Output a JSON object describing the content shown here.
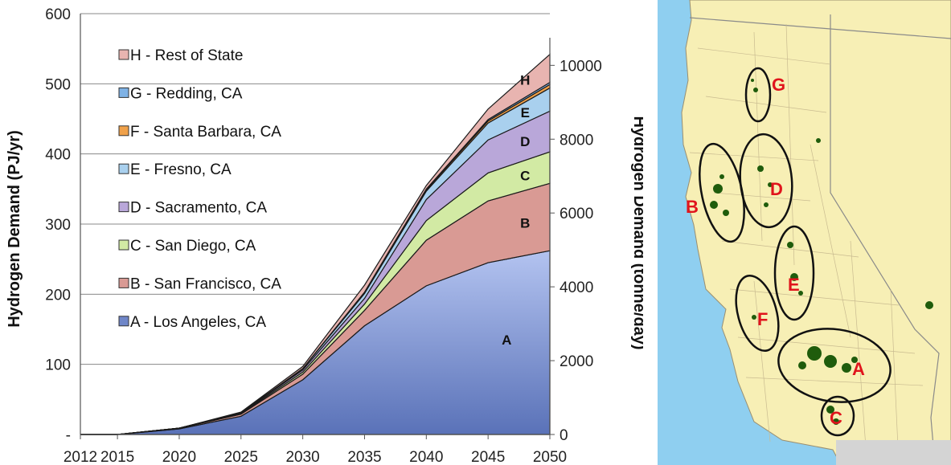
{
  "chart_data": {
    "type": "area",
    "stacked": true,
    "x": [
      2012,
      2015,
      2020,
      2025,
      2030,
      2035,
      2040,
      2045,
      2050
    ],
    "x_tick_labels": [
      "2012",
      "2015",
      "2020",
      "2025",
      "2030",
      "2035",
      "2040",
      "2045",
      "2050"
    ],
    "xlim": [
      2012,
      2050
    ],
    "ylabel": "Hydrogen Demand (PJ/yr)",
    "ylim": [
      0,
      600
    ],
    "y_tick_labels": [
      "-",
      "100",
      "200",
      "300",
      "400",
      "500",
      "600"
    ],
    "y2label": "Hydrogen Demand (tonne/day)",
    "y2lim": [
      0,
      11400
    ],
    "y2_tick_labels": [
      "0",
      "2000",
      "4000",
      "6000",
      "8000",
      "10000"
    ],
    "grid": "horizontal",
    "legend_position": "top-left inside",
    "series": [
      {
        "name": "A - Los Angeles, CA",
        "short": "A",
        "color": "#6f86c8",
        "values": [
          0,
          0,
          8,
          26,
          78,
          155,
          212,
          245,
          262
        ]
      },
      {
        "name": "B - San Francisco, CA",
        "short": "B",
        "color": "#d99a94",
        "values": [
          0,
          0,
          1,
          3,
          8,
          22,
          65,
          88,
          96
        ]
      },
      {
        "name": "C - San Diego, CA",
        "short": "C",
        "color": "#d2eaa4",
        "values": [
          0,
          0,
          0,
          1,
          3,
          9,
          28,
          40,
          45
        ]
      },
      {
        "name": "D - Sacramento, CA",
        "short": "D",
        "color": "#b9a7d9",
        "values": [
          0,
          0,
          0,
          1,
          3,
          8,
          30,
          47,
          58
        ]
      },
      {
        "name": "E - Fresno, CA",
        "short": "E",
        "color": "#a9d0ee",
        "values": [
          0,
          0,
          0,
          0,
          2,
          7,
          12,
          24,
          33
        ]
      },
      {
        "name": "F - Santa Barbara, CA",
        "short": "F",
        "color": "#f0a14a",
        "values": [
          0,
          0,
          0,
          0,
          0,
          1,
          2,
          3,
          5
        ]
      },
      {
        "name": "G - Redding, CA",
        "short": "G",
        "color": "#7fb2e5",
        "values": [
          0,
          0,
          0,
          0,
          0,
          1,
          1,
          2,
          3
        ]
      },
      {
        "name": "H - Rest of State",
        "short": "H",
        "color": "#e8b4b0",
        "values": [
          0,
          0,
          0,
          1,
          3,
          10,
          5,
          15,
          40
        ]
      }
    ]
  },
  "map": {
    "labels": [
      "G",
      "B",
      "D",
      "E",
      "F",
      "A",
      "C"
    ],
    "label_color": "#e0141c",
    "land_color": "#f7efb5",
    "ocean_color": "#8fcff0",
    "urban_color": "#1f5c0c"
  }
}
